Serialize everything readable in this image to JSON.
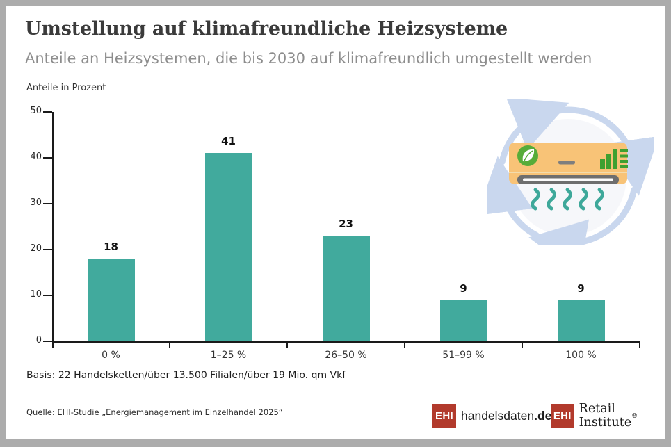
{
  "header": {
    "title": "Umstellung auf klimafreundliche Heizsysteme",
    "subtitle": "Anteile an Heizsystemen, die bis 2030 auf klimafreundlich umgestellt werden"
  },
  "chart_data": {
    "type": "bar",
    "title": "Umstellung auf klimafreundliche Heizsysteme",
    "unit_label": "Anteile in Prozent",
    "categories": [
      "0 %",
      "1–25 %",
      "26–50 %",
      "51–99 %",
      "100 %"
    ],
    "values": [
      18,
      41,
      23,
      9,
      9
    ],
    "ylim": [
      0,
      50
    ],
    "yticks": [
      0,
      10,
      20,
      30,
      40,
      50
    ],
    "grid": false,
    "value_labels": true,
    "bar_color": "#41AA9D",
    "axis_color": "#1a1a1a"
  },
  "illustration": {
    "name": "climate-friendly-heat-pump-with-recycling-arrows",
    "colors": {
      "arrows": "#C9D7EE",
      "circle_bg": "#F6F7FA",
      "unit_body": "#F8C377",
      "leaf_badge": "#57AC39",
      "efficiency_icon": "#3FA030",
      "vent": "#6E6E6E",
      "heat_waves": "#3EA89A"
    }
  },
  "footer": {
    "basis": "Basis: 22 Handelsketten/über 13.500 Filialen/über 19 Mio. qm Vkf",
    "source": "Quelle: EHI-Studie „Energiemanagement im Einzelhandel 2025“",
    "logos": [
      {
        "box": "EHI",
        "label": "handelsdaten",
        "suffix": ".de"
      },
      {
        "box": "EHI",
        "label": "Retail Institute",
        "registered": "®"
      }
    ],
    "logo_red": "#B23A2C"
  }
}
